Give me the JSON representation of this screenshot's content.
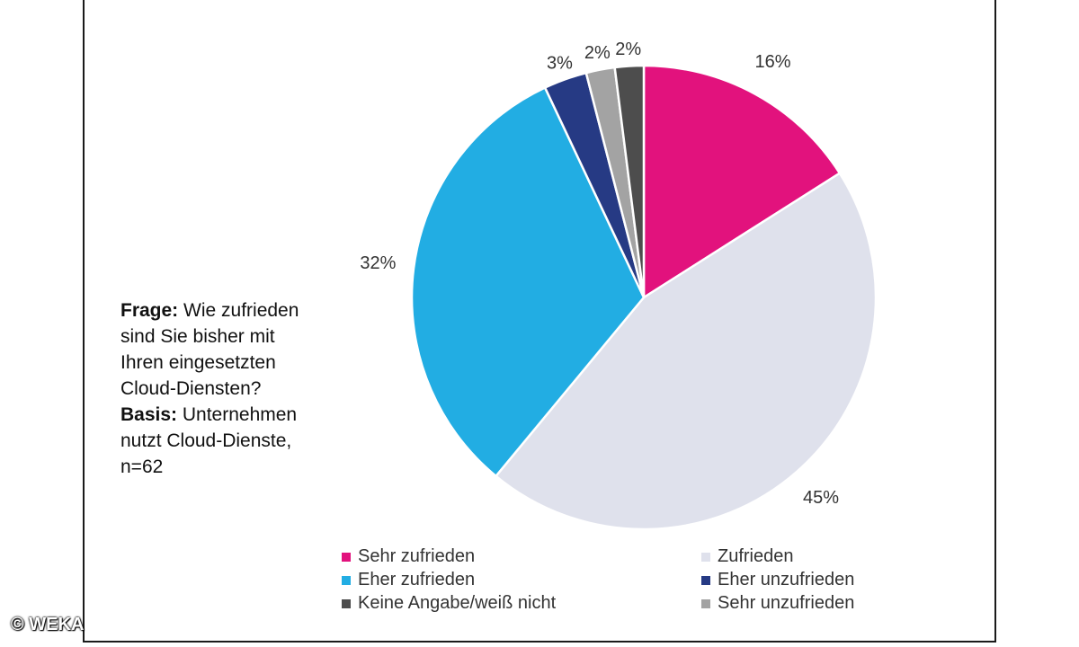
{
  "chart_data": {
    "type": "pie",
    "series": [
      {
        "name": "Sehr zufrieden",
        "value": 16,
        "label": "16%",
        "color": "#e2127d"
      },
      {
        "name": "Zufrieden",
        "value": 45,
        "label": "45%",
        "color": "#dfe1ec"
      },
      {
        "name": "Eher zufrieden",
        "value": 32,
        "label": "32%",
        "color": "#22ade3"
      },
      {
        "name": "Eher unzufrieden",
        "value": 3,
        "label": "3%",
        "color": "#263a84"
      },
      {
        "name": "Sehr unzufrieden",
        "value": 2,
        "label": "2%",
        "color": "#a3a3a3"
      },
      {
        "name": "Keine Angabe/weiß nicht",
        "value": 2,
        "label": "2%",
        "color": "#4d4d4d"
      }
    ],
    "legend_order": [
      "Sehr zufrieden",
      "Zufrieden",
      "Eher zufrieden",
      "Eher unzufrieden",
      "Keine Angabe/weiß nicht",
      "Sehr unzufrieden"
    ],
    "legend_placement": "bottom"
  },
  "note": {
    "frage_label": "Frage:",
    "frage_text": "Wie zufrieden sind Sie bisher mit Ihren eingesetzten Cloud-Diensten?",
    "basis_label": "Basis:",
    "basis_text": "Unternehmen nutzt Cloud-Dienste, n=62"
  },
  "watermark": "© WEKA"
}
